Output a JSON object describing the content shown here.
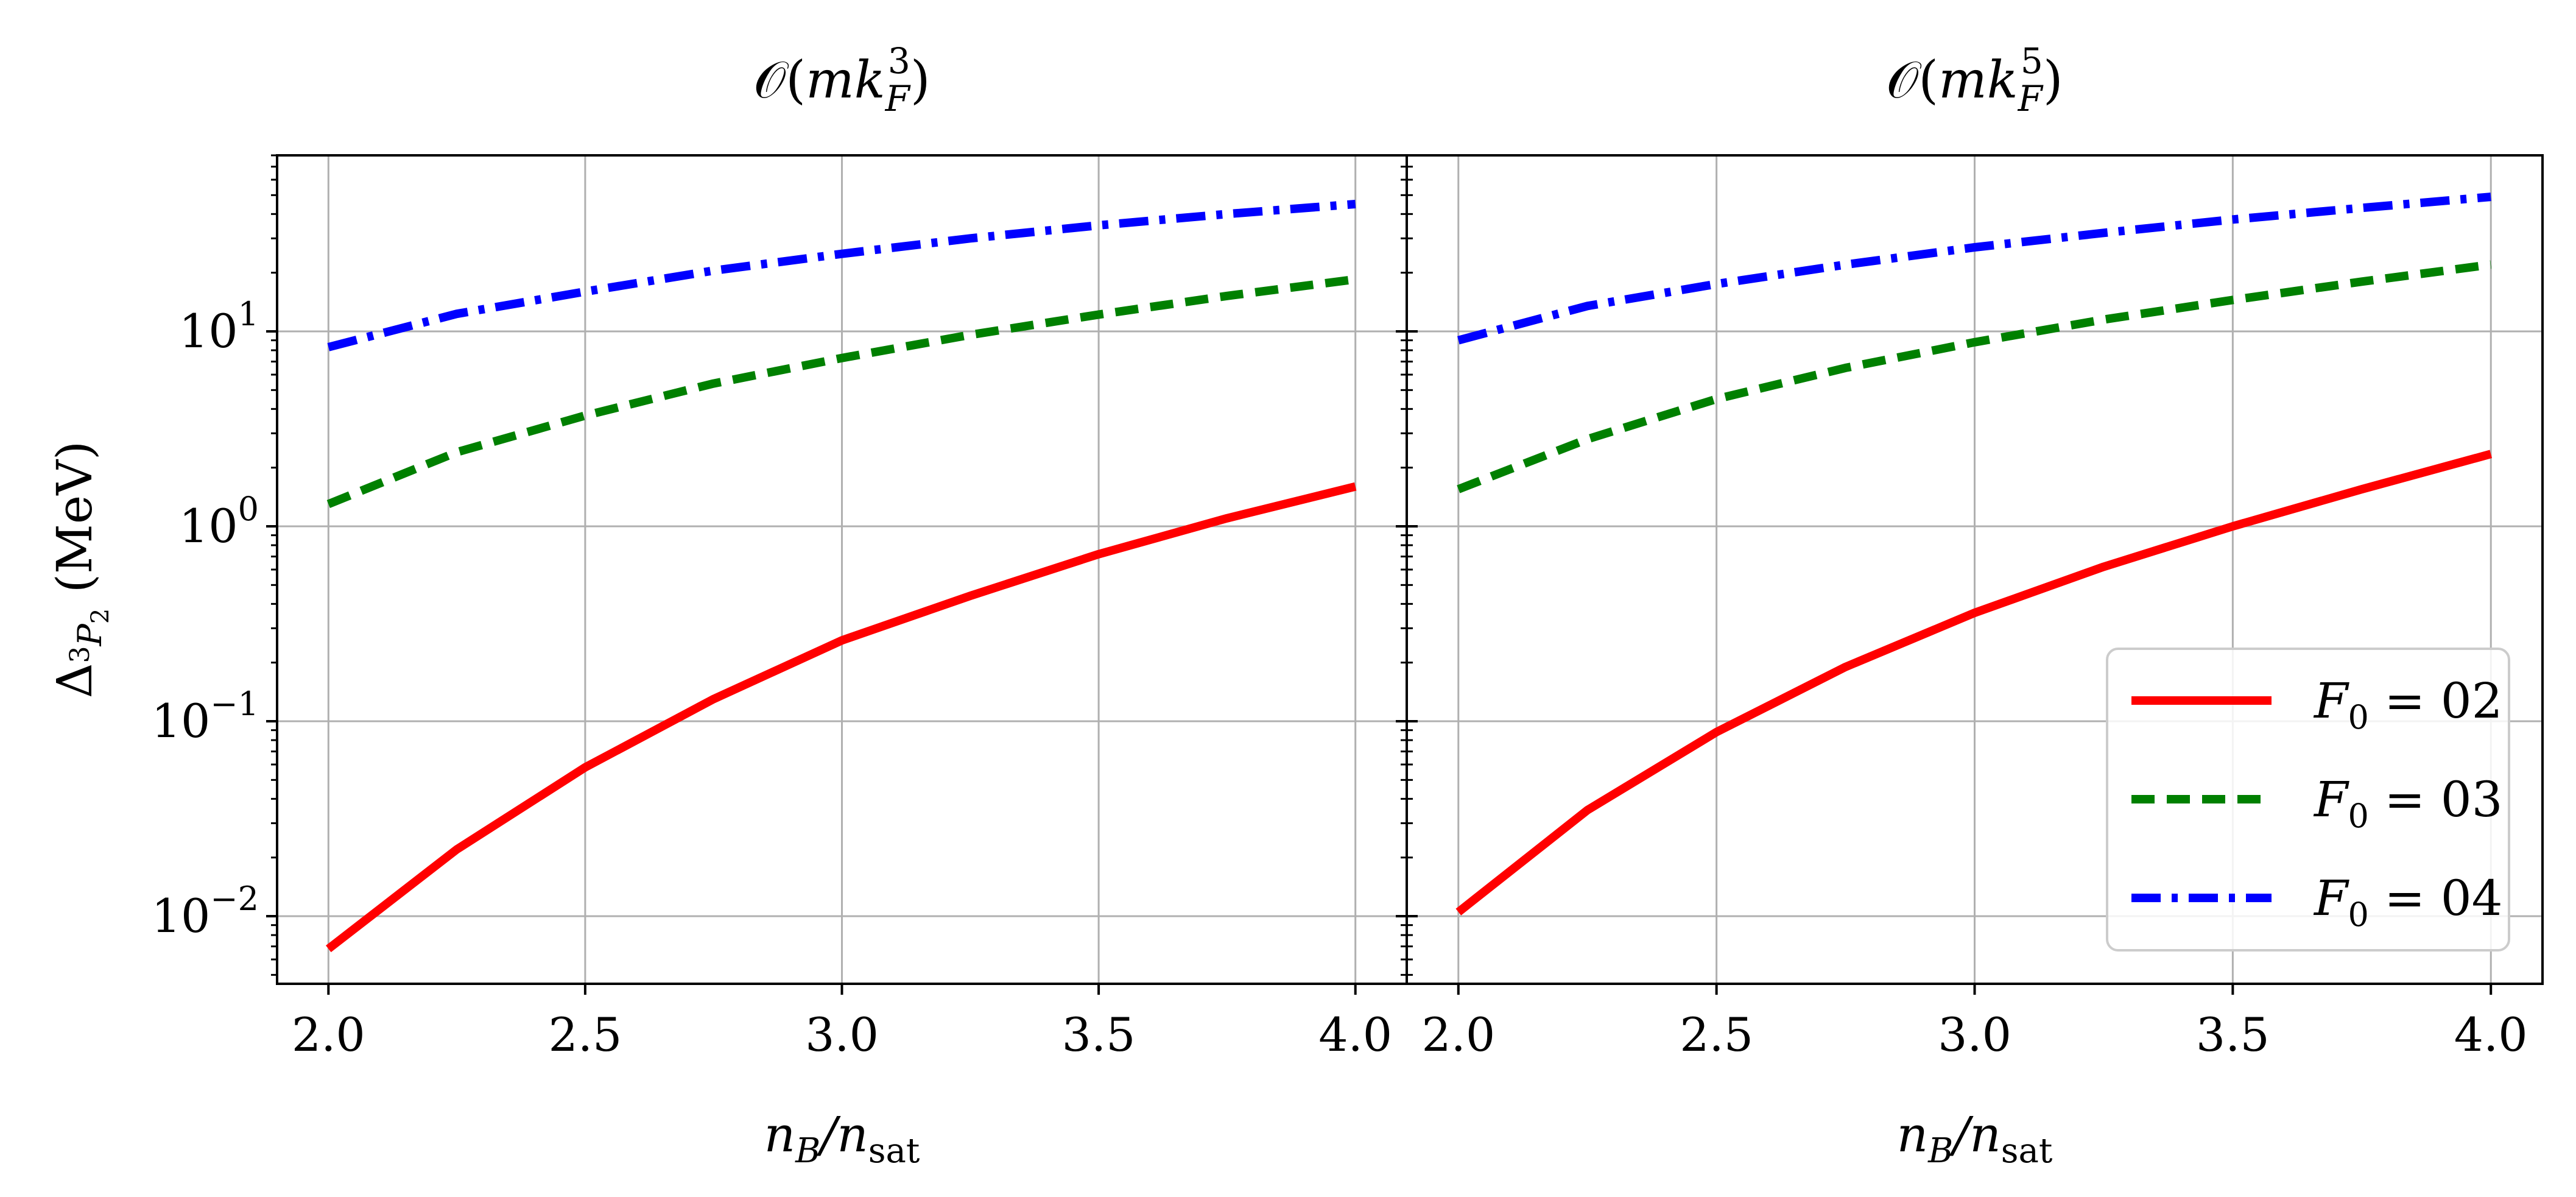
{
  "chart_data": [
    {
      "type": "line",
      "title": "𝒪(mk_F^3)",
      "xlabel": "n_B/n_sat",
      "ylabel": "Δ_{3P2} (MeV)",
      "xlim": [
        1.9,
        4.1
      ],
      "ylim": [
        0.0045,
        80
      ],
      "yscale": "log",
      "grid": true,
      "xticks": [
        2.0,
        2.5,
        3.0,
        3.5,
        4.0
      ],
      "xticklabels": [
        "2.0",
        "2.5",
        "3.0",
        "3.5",
        "4.0"
      ],
      "yticks": [
        0.01,
        0.1,
        1,
        10
      ],
      "x": [
        2.0,
        2.25,
        2.5,
        2.75,
        3.0,
        3.25,
        3.5,
        3.75,
        4.0
      ],
      "series": [
        {
          "name": "F0 = 2",
          "color": "#ff0000",
          "dash": "solid",
          "values": [
            0.0068,
            0.022,
            0.058,
            0.13,
            0.26,
            0.44,
            0.72,
            1.1,
            1.6
          ]
        },
        {
          "name": "F0 = 3",
          "color": "#008000",
          "dash": "dashed",
          "values": [
            1.3,
            2.4,
            3.7,
            5.4,
            7.3,
            9.6,
            12.2,
            15.2,
            18.5
          ]
        },
        {
          "name": "F0 = 4",
          "color": "#0000ff",
          "dash": "dashdot",
          "values": [
            8.3,
            12.3,
            16.0,
            20.5,
            25.0,
            30.0,
            35.0,
            40.0,
            45.0
          ]
        }
      ]
    },
    {
      "type": "line",
      "title": "𝒪(mk_F^5)",
      "xlabel": "n_B/n_sat",
      "ylabel": "",
      "xlim": [
        1.9,
        4.1
      ],
      "ylim": [
        0.0045,
        80
      ],
      "yscale": "log",
      "grid": true,
      "xticks": [
        2.0,
        2.5,
        3.0,
        3.5,
        4.0
      ],
      "xticklabels": [
        "2.0",
        "2.5",
        "3.0",
        "3.5",
        "4.0"
      ],
      "yticks": [
        0.01,
        0.1,
        1,
        10
      ],
      "x": [
        2.0,
        2.25,
        2.5,
        2.75,
        3.0,
        3.25,
        3.5,
        3.75,
        4.0
      ],
      "series": [
        {
          "name": "F0 = 2",
          "color": "#ff0000",
          "dash": "solid",
          "values": [
            0.0105,
            0.035,
            0.088,
            0.19,
            0.36,
            0.62,
            1.0,
            1.55,
            2.35
          ]
        },
        {
          "name": "F0 = 3",
          "color": "#008000",
          "dash": "dashed",
          "values": [
            1.55,
            2.8,
            4.5,
            6.5,
            8.8,
            11.5,
            14.5,
            18.0,
            22.0
          ]
        },
        {
          "name": "F0 = 4",
          "color": "#0000ff",
          "dash": "dashdot",
          "values": [
            9.0,
            13.5,
            17.5,
            22.0,
            27.0,
            32.0,
            37.5,
            43.0,
            49.0
          ]
        }
      ],
      "legend": "lower right"
    }
  ]
}
